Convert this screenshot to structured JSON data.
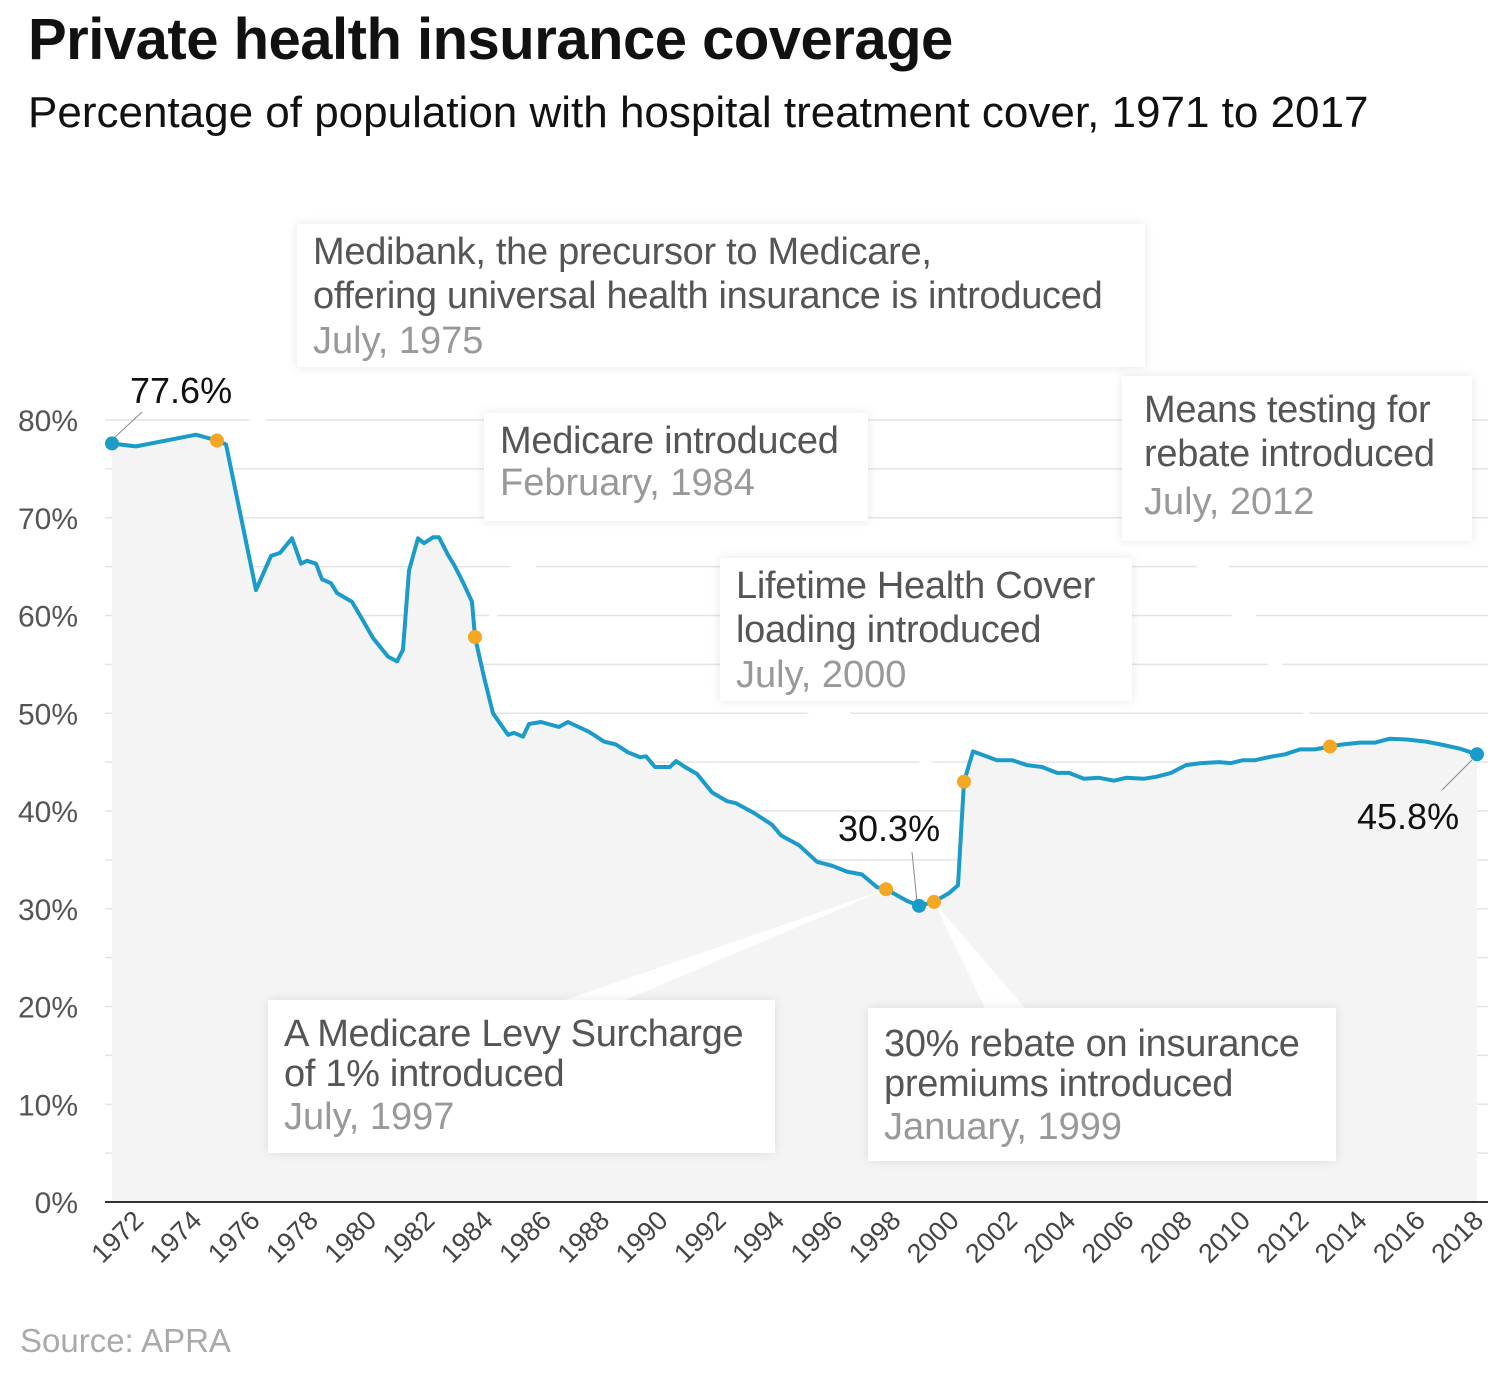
{
  "title": "Private health insurance coverage",
  "subtitle": "Percentage of population with hospital treatment cover, 1971 to 2017",
  "source": "Source: APRA",
  "colors": {
    "line": "#1a9bc9",
    "event_marker": "#f5a623",
    "endpoint_marker": "#1a9bc9",
    "area": "#f4f4f4",
    "grid": "#e4e4e4"
  },
  "chart_data": {
    "type": "line",
    "title": "Private health insurance coverage",
    "xlabel": "",
    "ylabel": "",
    "ylim": [
      0,
      80
    ],
    "xlim": [
      1971,
      2018
    ],
    "grid": true,
    "y_ticks": [
      "0%",
      "10%",
      "20%",
      "30%",
      "40%",
      "50%",
      "60%",
      "70%",
      "80%"
    ],
    "x_ticks": [
      "1972",
      "1974",
      "1976",
      "1978",
      "1980",
      "1982",
      "1984",
      "1986",
      "1988",
      "1990",
      "1992",
      "1994",
      "1996",
      "1998",
      "2000",
      "2002",
      "2004",
      "2006",
      "2008",
      "2010",
      "2012",
      "2014",
      "2016",
      "2018"
    ],
    "points": [
      [
        1972.0,
        77.6
      ],
      [
        1972.8,
        77.3
      ],
      [
        1974.8,
        78.5
      ],
      [
        1975.5,
        77.9
      ],
      [
        1975.8,
        77.5
      ],
      [
        1976.8,
        62.6
      ],
      [
        1977.3,
        66.1
      ],
      [
        1977.6,
        66.4
      ],
      [
        1978.0,
        67.9
      ],
      [
        1978.3,
        65.3
      ],
      [
        1978.5,
        65.6
      ],
      [
        1978.8,
        65.3
      ],
      [
        1979.0,
        63.7
      ],
      [
        1979.3,
        63.3
      ],
      [
        1979.5,
        62.3
      ],
      [
        1980.0,
        61.4
      ],
      [
        1980.4,
        59.3
      ],
      [
        1980.7,
        57.7
      ],
      [
        1981.2,
        55.8
      ],
      [
        1981.5,
        55.3
      ],
      [
        1981.7,
        56.5
      ],
      [
        1981.9,
        64.6
      ],
      [
        1982.2,
        67.9
      ],
      [
        1982.4,
        67.4
      ],
      [
        1982.7,
        68.0
      ],
      [
        1982.9,
        68.0
      ],
      [
        1983.2,
        66.2
      ],
      [
        1983.4,
        65.2
      ],
      [
        1983.7,
        63.4
      ],
      [
        1984.0,
        61.4
      ],
      [
        1984.1,
        57.8
      ],
      [
        1984.4,
        53.7
      ],
      [
        1984.7,
        50.0
      ],
      [
        1985.2,
        47.8
      ],
      [
        1985.4,
        48.0
      ],
      [
        1985.7,
        47.6
      ],
      [
        1985.9,
        48.9
      ],
      [
        1986.3,
        49.1
      ],
      [
        1986.9,
        48.6
      ],
      [
        1987.2,
        49.1
      ],
      [
        1987.9,
        48.1
      ],
      [
        1988.4,
        47.1
      ],
      [
        1988.8,
        46.8
      ],
      [
        1989.2,
        46.0
      ],
      [
        1989.6,
        45.5
      ],
      [
        1989.8,
        45.6
      ],
      [
        1990.1,
        44.5
      ],
      [
        1990.6,
        44.5
      ],
      [
        1990.8,
        45.1
      ],
      [
        1991.1,
        44.5
      ],
      [
        1991.5,
        43.8
      ],
      [
        1992.0,
        41.9
      ],
      [
        1992.5,
        41.0
      ],
      [
        1992.8,
        40.8
      ],
      [
        1993.4,
        39.8
      ],
      [
        1994.0,
        38.6
      ],
      [
        1994.3,
        37.5
      ],
      [
        1994.9,
        36.5
      ],
      [
        1995.5,
        34.8
      ],
      [
        1996.0,
        34.4
      ],
      [
        1996.5,
        33.8
      ],
      [
        1997.0,
        33.5
      ],
      [
        1997.5,
        32.2
      ],
      [
        1997.8,
        32.0
      ],
      [
        1998.5,
        30.8
      ],
      [
        1998.9,
        30.3
      ],
      [
        1999.4,
        30.7
      ],
      [
        1999.9,
        31.6
      ],
      [
        2000.2,
        32.4
      ],
      [
        2000.4,
        43.0
      ],
      [
        2000.7,
        46.1
      ],
      [
        2001.5,
        45.2
      ],
      [
        2002.0,
        45.2
      ],
      [
        2002.5,
        44.7
      ],
      [
        2003.0,
        44.5
      ],
      [
        2003.5,
        43.9
      ],
      [
        2003.9,
        43.9
      ],
      [
        2004.4,
        43.3
      ],
      [
        2004.9,
        43.4
      ],
      [
        2005.4,
        43.1
      ],
      [
        2005.8,
        43.4
      ],
      [
        2006.4,
        43.3
      ],
      [
        2006.8,
        43.5
      ],
      [
        2007.3,
        43.9
      ],
      [
        2007.8,
        44.7
      ],
      [
        2008.3,
        44.9
      ],
      [
        2008.9,
        45.0
      ],
      [
        2009.3,
        44.9
      ],
      [
        2009.7,
        45.2
      ],
      [
        2010.1,
        45.2
      ],
      [
        2010.7,
        45.6
      ],
      [
        2011.1,
        45.8
      ],
      [
        2011.6,
        46.3
      ],
      [
        2012.1,
        46.3
      ],
      [
        2012.6,
        46.6
      ],
      [
        2013.0,
        46.8
      ],
      [
        2013.6,
        47.0
      ],
      [
        2014.1,
        47.0
      ],
      [
        2014.6,
        47.4
      ],
      [
        2015.2,
        47.3
      ],
      [
        2015.8,
        47.1
      ],
      [
        2016.3,
        46.8
      ],
      [
        2016.9,
        46.4
      ],
      [
        2017.5,
        45.8
      ]
    ],
    "value_labels": [
      {
        "x": 1972.0,
        "y": 77.6,
        "text": "77.6%"
      },
      {
        "x": 1998.9,
        "y": 30.3,
        "text": "30.3%"
      },
      {
        "x": 2017.5,
        "y": 45.8,
        "text": "45.8%"
      }
    ],
    "events": [
      {
        "x": 1975.5,
        "y": 77.9,
        "lines": [
          "Medibank, the precursor to Medicare,",
          "offering universal health insurance is introduced"
        ],
        "date": "July, 1975"
      },
      {
        "x": 1984.1,
        "y": 57.8,
        "lines": [
          "Medicare introduced"
        ],
        "date": "February, 1984"
      },
      {
        "x": 1997.8,
        "y": 32.0,
        "lines": [
          "A Medicare Levy Surcharge",
          "of 1% introduced"
        ],
        "date": "July, 1997"
      },
      {
        "x": 1999.4,
        "y": 30.7,
        "lines": [
          "30% rebate on insurance",
          "premiums introduced"
        ],
        "date": "January, 1999"
      },
      {
        "x": 2000.4,
        "y": 43.0,
        "lines": [
          "Lifetime Health Cover",
          "loading introduced"
        ],
        "date": "July, 2000"
      },
      {
        "x": 2012.6,
        "y": 46.6,
        "lines": [
          "Means testing for",
          "rebate introduced"
        ],
        "date": "July, 2012"
      }
    ]
  }
}
